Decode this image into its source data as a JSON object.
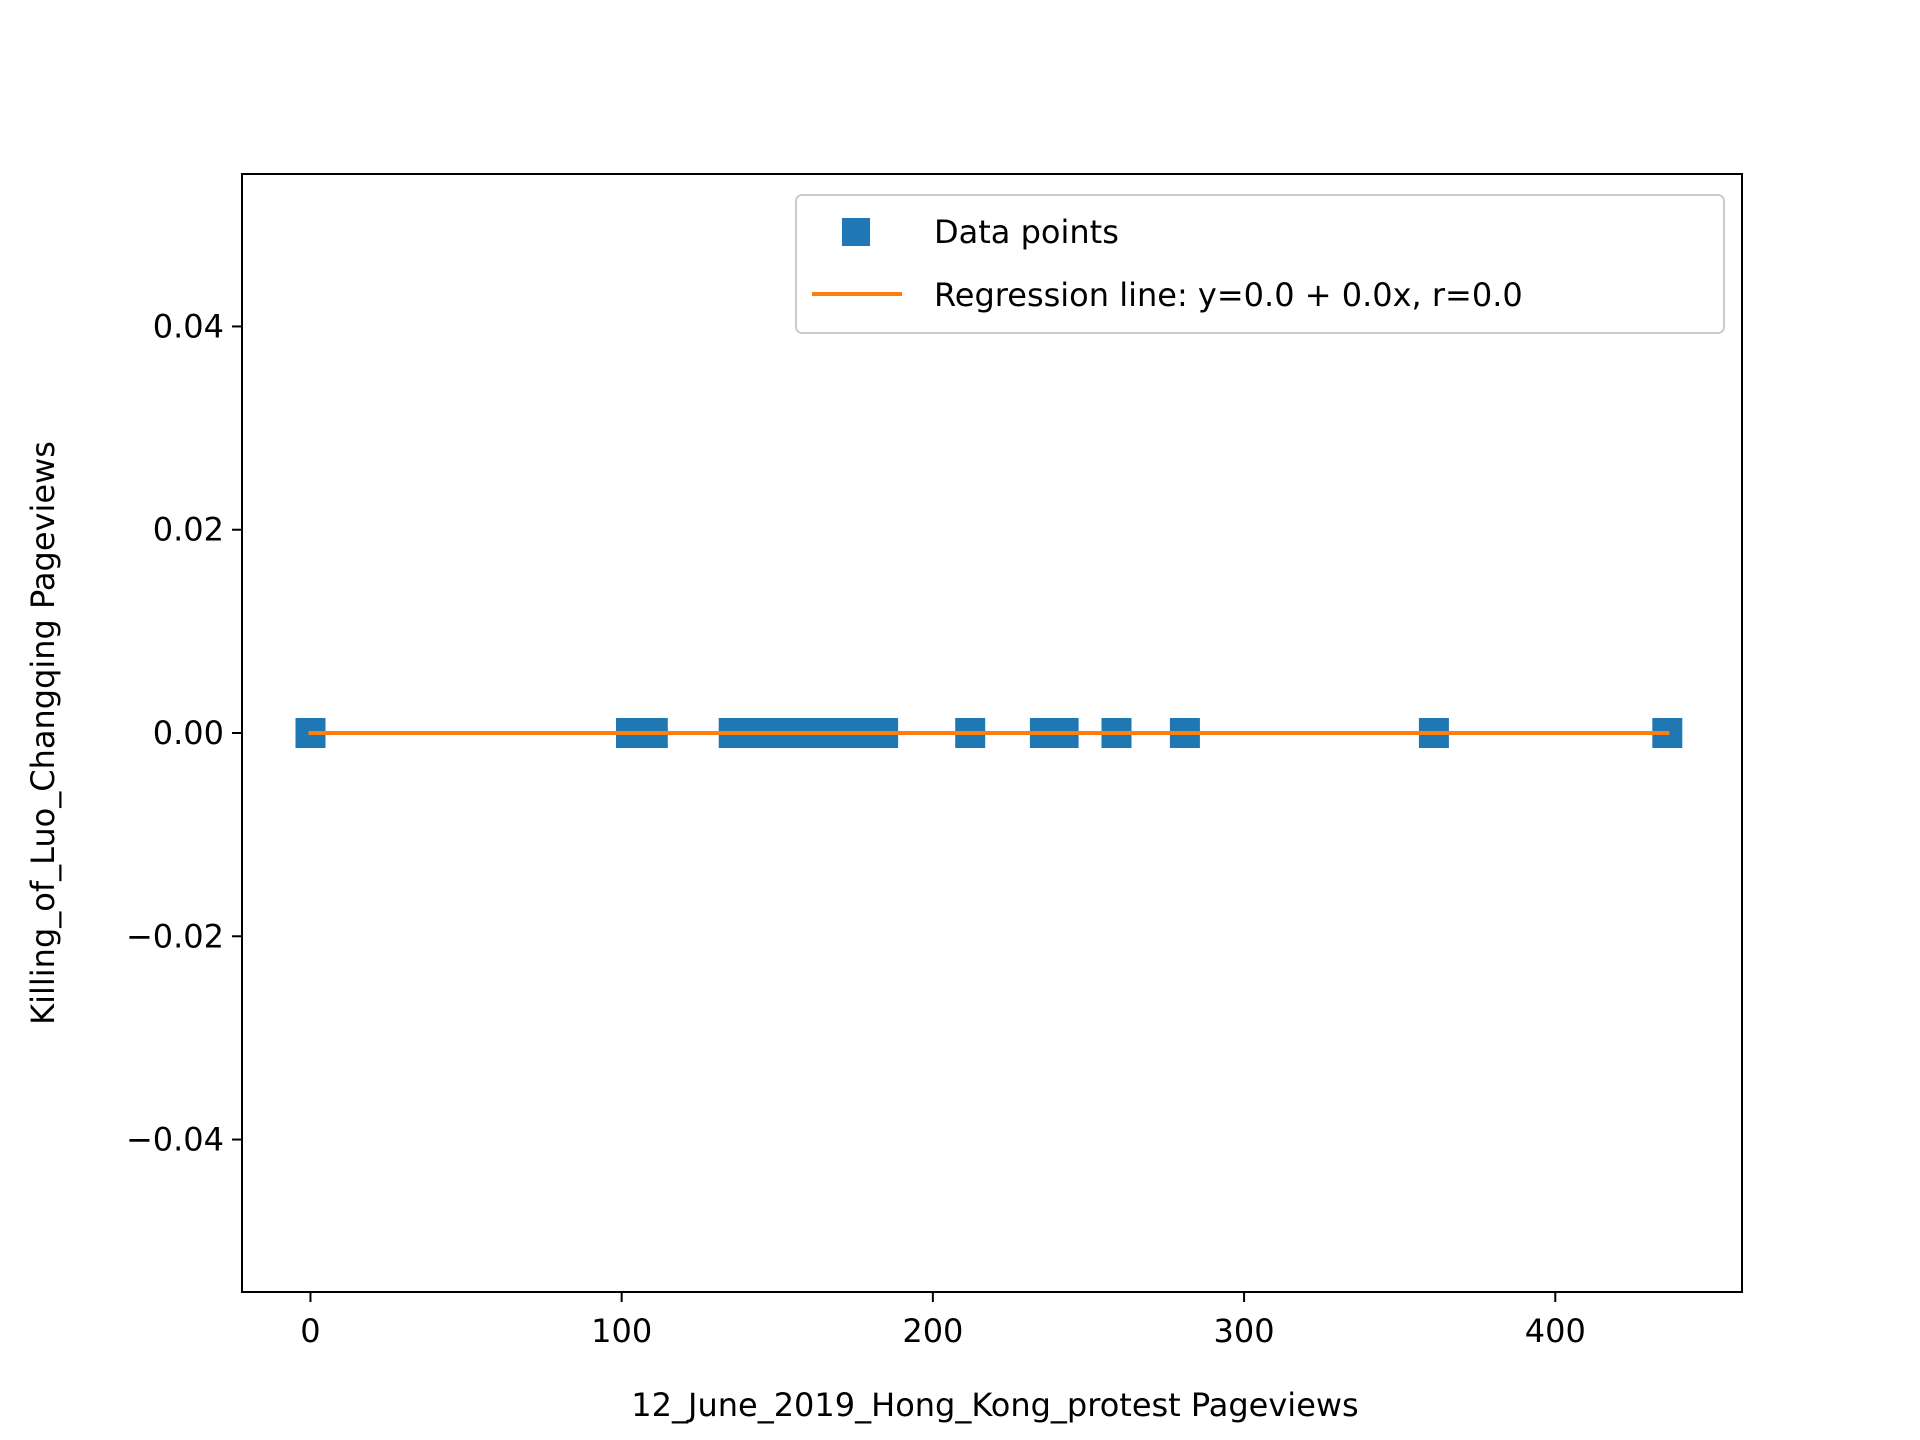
{
  "chart_data": {
    "type": "scatter",
    "xlabel": "12_June_2019_Hong_Kong_protest Pageviews",
    "ylabel": "Killing_of_Luo_Changqing Pageviews",
    "xlim": [
      -22,
      460
    ],
    "ylim": [
      -0.055,
      0.055
    ],
    "x_ticks": [
      {
        "value": 0,
        "label": "0"
      },
      {
        "value": 100,
        "label": "100"
      },
      {
        "value": 200,
        "label": "200"
      },
      {
        "value": 300,
        "label": "300"
      },
      {
        "value": 400,
        "label": "400"
      }
    ],
    "y_ticks": [
      {
        "value": 0.04,
        "label": "0.04"
      },
      {
        "value": 0.02,
        "label": "0.02"
      },
      {
        "value": 0.0,
        "label": "0.00"
      },
      {
        "value": -0.02,
        "label": "−0.02"
      },
      {
        "value": -0.04,
        "label": "−0.04"
      }
    ],
    "grid": false,
    "legend_position": "top-right",
    "series": [
      {
        "name": "Data points",
        "kind": "scatter",
        "marker": "square",
        "color": "#1f77b4",
        "x": [
          0,
          103,
          106,
          110,
          136,
          140,
          144,
          148,
          152,
          156,
          160,
          164,
          168,
          172,
          176,
          180,
          184,
          212,
          236,
          242,
          259,
          281,
          361,
          436
        ],
        "y": [
          0,
          0,
          0,
          0,
          0,
          0,
          0,
          0,
          0,
          0,
          0,
          0,
          0,
          0,
          0,
          0,
          0,
          0,
          0,
          0,
          0,
          0,
          0,
          0
        ]
      },
      {
        "name": "Regression line: y=0.0 + 0.0x, r=0.0",
        "kind": "line",
        "color": "#ff7f0e",
        "x": [
          0,
          436
        ],
        "y": [
          0,
          0
        ]
      }
    ]
  }
}
